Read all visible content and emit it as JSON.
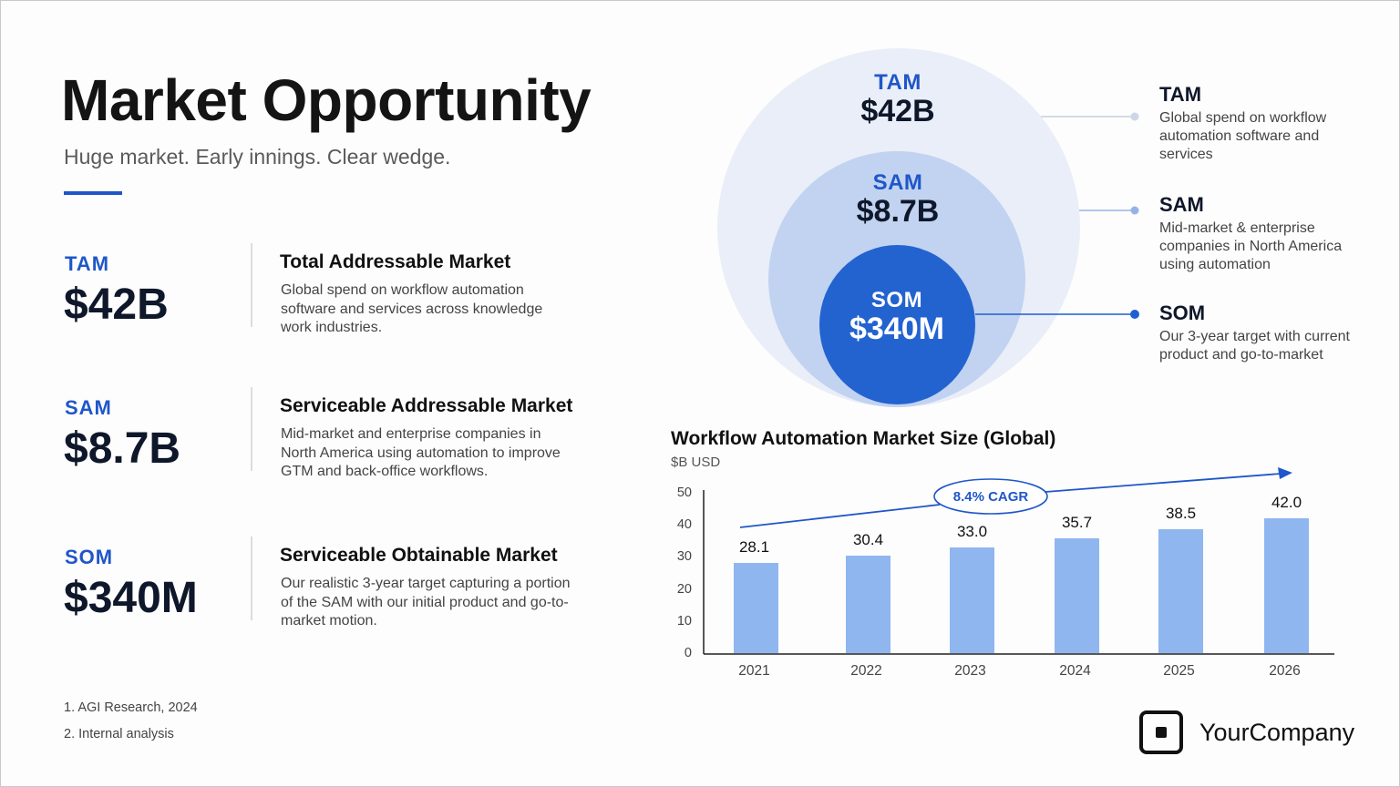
{
  "header": {
    "title": "Market Opportunity",
    "subtitle": "Huge market. Early innings. Clear wedge.",
    "accent_color": "#1f56c9"
  },
  "metrics": [
    {
      "abbr": "TAM",
      "value": "$42B",
      "name": "Total Addressable Market",
      "description": "Global spend on workflow automation software and services across knowledge work industries."
    },
    {
      "abbr": "SAM",
      "value": "$8.7B",
      "name": "Serviceable Addressable Market",
      "description": "Mid-market and enterprise companies in North America using automation to improve GTM and back-office workflows."
    },
    {
      "abbr": "SOM",
      "value": "$340M",
      "name": "Serviceable Obtainable Market",
      "description": "Our realistic 3-year target capturing a portion of the SAM with our initial product and go-to-market motion."
    }
  ],
  "footnotes": [
    "1.  AGI Research, 2024",
    "2.  Internal analysis"
  ],
  "circles": {
    "tam": {
      "abbr": "TAM",
      "value": "$42B",
      "color": "#e9eef8"
    },
    "sam": {
      "abbr": "SAM",
      "value": "$8.7B",
      "color": "#c1d3f0"
    },
    "som": {
      "abbr": "SOM",
      "value": "$340M",
      "color": "#2363d0"
    }
  },
  "legend": [
    {
      "abbr": "TAM",
      "description": "Global spend on workflow automation software and services",
      "dot_color": "#cdd6e4"
    },
    {
      "abbr": "SAM",
      "description": "Mid-market & enterprise companies in North America using automation",
      "dot_color": "#97b3e6"
    },
    {
      "abbr": "SOM",
      "description": "Our 3-year target with current product and go-to-market",
      "dot_color": "#1f5fd0"
    }
  ],
  "chart": {
    "title": "Workflow Automation Market Size (Global)",
    "unit": "$B USD",
    "cagr_label": "8.4% CAGR",
    "y_ticks": [
      "50",
      "40",
      "30",
      "20",
      "10",
      "0"
    ],
    "bar_color": "#8fb6ef"
  },
  "chart_data": {
    "type": "bar",
    "title": "Workflow Automation Market Size (Global)",
    "subtitle": "$B USD",
    "xlabel": "",
    "ylabel": "$B USD",
    "categories": [
      "2021",
      "2022",
      "2023",
      "2024",
      "2025",
      "2026"
    ],
    "values": [
      28.1,
      30.4,
      33.0,
      35.7,
      38.5,
      42.0
    ],
    "value_labels": [
      "28.1",
      "30.4",
      "33.0",
      "35.7",
      "38.5",
      "42.0"
    ],
    "ylim": [
      0,
      50
    ],
    "yticks": [
      0,
      10,
      20,
      30,
      40,
      50
    ],
    "grid": false,
    "legend": null,
    "annotations": [
      {
        "type": "trend-arrow",
        "label": "8.4% CAGR"
      }
    ]
  },
  "brand": {
    "name": "YourCompany"
  }
}
